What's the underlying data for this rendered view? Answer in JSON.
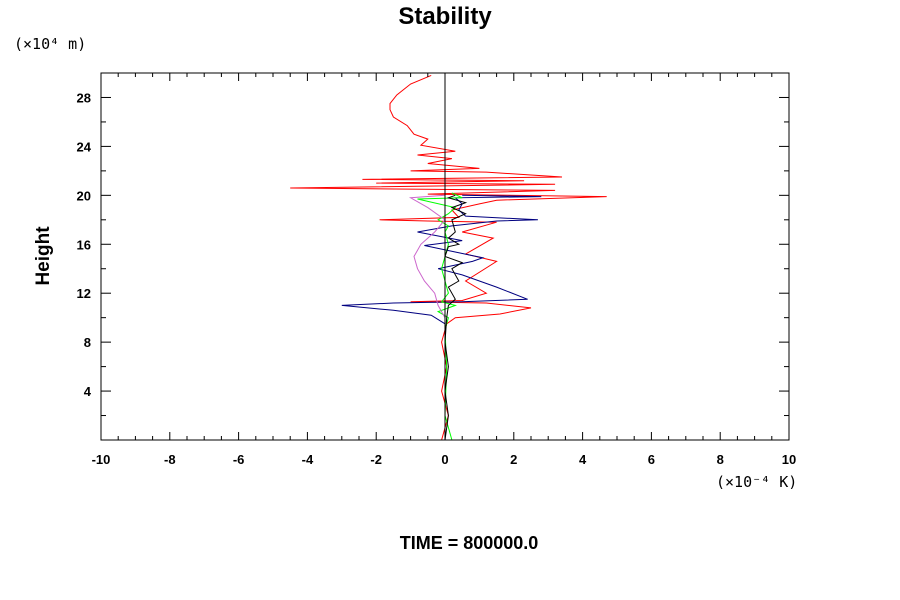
{
  "chart_data": {
    "type": "line",
    "title": "Stability",
    "ylabel": "Height",
    "xlabel": "",
    "y_unit": "(×10⁴ m)",
    "x_unit": "(×10⁻⁴ K)",
    "footer": "TIME = 800000.0",
    "xlim": [
      -10,
      10
    ],
    "ylim": [
      0,
      30
    ],
    "x_ticks": [
      -10,
      -8,
      -6,
      -4,
      -2,
      0,
      2,
      4,
      6,
      8,
      10
    ],
    "y_ticks": [
      4,
      8,
      12,
      16,
      20,
      24,
      28
    ],
    "grid": false,
    "series": [
      {
        "name": "red",
        "color": "#ff0000",
        "points": [
          [
            -0.1,
            0
          ],
          [
            0.1,
            2
          ],
          [
            -0.1,
            4
          ],
          [
            0.05,
            6
          ],
          [
            -0.1,
            8
          ],
          [
            0.05,
            9.5
          ],
          [
            0.3,
            10
          ],
          [
            1.6,
            10.3
          ],
          [
            2.5,
            10.8
          ],
          [
            1.2,
            11.2
          ],
          [
            -1,
            11.3
          ],
          [
            0.5,
            11.4
          ],
          [
            1.2,
            12
          ],
          [
            0.6,
            13
          ],
          [
            1.5,
            14.6
          ],
          [
            0.6,
            15.2
          ],
          [
            1.4,
            16.5
          ],
          [
            0.5,
            17
          ],
          [
            1.5,
            17.8
          ],
          [
            -0.5,
            17.9
          ],
          [
            -1.9,
            18
          ],
          [
            0.4,
            18.2
          ],
          [
            0.2,
            18.8
          ],
          [
            1,
            19.3
          ],
          [
            1.5,
            19.6
          ],
          [
            4.7,
            19.9
          ],
          [
            -0.5,
            20.1
          ],
          [
            3.2,
            20.4
          ],
          [
            -4.5,
            20.6
          ],
          [
            3.2,
            20.9
          ],
          [
            -2,
            21
          ],
          [
            2.3,
            21.2
          ],
          [
            -2.4,
            21.3
          ],
          [
            3.4,
            21.5
          ],
          [
            1.2,
            21.9
          ],
          [
            -1,
            22
          ],
          [
            1,
            22.2
          ],
          [
            -0.5,
            22.6
          ],
          [
            0.2,
            23
          ],
          [
            -0.8,
            23.3
          ],
          [
            0.3,
            23.6
          ],
          [
            -0.7,
            24.1
          ],
          [
            -0.5,
            24.6
          ],
          [
            -0.9,
            25
          ],
          [
            -1.1,
            25.7
          ],
          [
            -1.5,
            26.4
          ],
          [
            -1.6,
            27
          ],
          [
            -1.6,
            27.5
          ],
          [
            -1.4,
            28.2
          ],
          [
            -1,
            29.1
          ],
          [
            -0.4,
            29.8
          ]
        ]
      },
      {
        "name": "navy",
        "color": "#000080",
        "points": [
          [
            0,
            0
          ],
          [
            0,
            2
          ],
          [
            0,
            4
          ],
          [
            0,
            6
          ],
          [
            0,
            8
          ],
          [
            0,
            9.5
          ],
          [
            -0.4,
            10.2
          ],
          [
            -1.5,
            10.6
          ],
          [
            -3,
            11
          ],
          [
            -1.5,
            11.2
          ],
          [
            0.5,
            11.3
          ],
          [
            2.4,
            11.5
          ],
          [
            1.5,
            12.5
          ],
          [
            0.5,
            13.5
          ],
          [
            -0.2,
            14
          ],
          [
            0.8,
            14.6
          ],
          [
            1.1,
            14.9
          ],
          [
            0.4,
            15.3
          ],
          [
            -0.6,
            15.9
          ],
          [
            0.5,
            16.3
          ],
          [
            -0.8,
            17
          ],
          [
            0.2,
            17.5
          ],
          [
            1.5,
            17.9
          ],
          [
            2.7,
            18
          ],
          [
            0.6,
            18.3
          ],
          [
            0.4,
            18.8
          ],
          [
            0.5,
            19.3
          ],
          [
            0.3,
            19.8
          ],
          [
            2.8,
            19.9
          ],
          [
            0.5,
            20
          ]
        ]
      },
      {
        "name": "green",
        "color": "#00ff00",
        "points": [
          [
            0.2,
            0
          ],
          [
            0,
            2
          ],
          [
            0.05,
            6
          ],
          [
            0,
            9
          ],
          [
            0.1,
            10
          ],
          [
            -0.2,
            10.5
          ],
          [
            0.3,
            11
          ],
          [
            -0.1,
            11.3
          ],
          [
            0.1,
            12
          ],
          [
            -0.1,
            14
          ],
          [
            0.1,
            16
          ],
          [
            0,
            17
          ],
          [
            0.1,
            17.5
          ],
          [
            -0.2,
            18
          ],
          [
            0.1,
            18.5
          ],
          [
            0.3,
            19
          ],
          [
            -0.8,
            19.7
          ],
          [
            0.5,
            19.8
          ],
          [
            0.2,
            20.2
          ]
        ]
      },
      {
        "name": "violet",
        "color": "#cc66cc",
        "points": [
          [
            0,
            10
          ],
          [
            -0.2,
            11
          ],
          [
            -0.3,
            12
          ],
          [
            -0.6,
            13
          ],
          [
            -0.8,
            14
          ],
          [
            -0.9,
            15
          ],
          [
            -0.7,
            16
          ],
          [
            -0.3,
            17
          ],
          [
            0,
            18
          ],
          [
            -0.5,
            19
          ],
          [
            -1,
            19.8
          ],
          [
            0,
            20
          ]
        ]
      },
      {
        "name": "black",
        "color": "#000000",
        "points": [
          [
            0,
            0
          ],
          [
            0.1,
            2
          ],
          [
            0,
            4
          ],
          [
            0.1,
            6
          ],
          [
            0,
            8
          ],
          [
            0.05,
            10
          ],
          [
            0.1,
            11
          ],
          [
            0.3,
            11.5
          ],
          [
            0.1,
            12.5
          ],
          [
            0.4,
            13
          ],
          [
            0.2,
            14
          ],
          [
            0.5,
            14.5
          ],
          [
            0,
            15
          ],
          [
            0.1,
            15.8
          ],
          [
            0.4,
            16
          ],
          [
            0.1,
            16.5
          ],
          [
            0.3,
            17
          ],
          [
            0.2,
            18
          ],
          [
            0.6,
            18.5
          ],
          [
            0.2,
            19
          ],
          [
            0.6,
            19.4
          ],
          [
            0.1,
            19.8
          ],
          [
            0.3,
            20
          ]
        ]
      }
    ]
  }
}
